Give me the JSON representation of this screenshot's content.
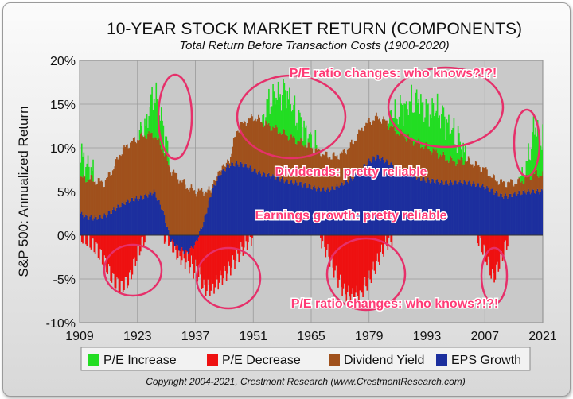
{
  "chart_data": {
    "type": "bar",
    "title": "10-YEAR STOCK MARKET RETURN (COMPONENTS)",
    "subtitle": "Total Return Before Transaction Costs (1900-2020)",
    "ylabel": "S&P 500: Annualized Return",
    "xlabel": "",
    "ylim": [
      -10,
      20
    ],
    "xlim": [
      1909,
      2021
    ],
    "x_ticks": [
      "1909",
      "1923",
      "1937",
      "1951",
      "1965",
      "1979",
      "1993",
      "2007",
      "2021"
    ],
    "y_ticks": [
      {
        "value": 20,
        "label": "20%"
      },
      {
        "value": 15,
        "label": "15%"
      },
      {
        "value": 10,
        "label": "10%"
      },
      {
        "value": 5,
        "label": "5%"
      },
      {
        "value": 0,
        "label": "0%"
      },
      {
        "value": -5,
        "label": "-5%"
      },
      {
        "value": -10,
        "label": "-10%"
      }
    ],
    "grid": true,
    "legend_placement": "bottom",
    "series": [
      {
        "name": "P/E Increase",
        "color": "#22dd22",
        "kind": "stacked-positive"
      },
      {
        "name": "P/E Decrease",
        "color": "#ee1111",
        "kind": "negative"
      },
      {
        "name": "Dividend Yield",
        "color": "#a0511c",
        "kind": "stacked-positive"
      },
      {
        "name": "EPS Growth",
        "color": "#1c2f9e",
        "kind": "signed"
      }
    ],
    "anchors": {
      "year": [
        1909,
        1911,
        1913,
        1915,
        1917,
        1919,
        1921,
        1923,
        1925,
        1927,
        1929,
        1931,
        1933,
        1935,
        1937,
        1939,
        1941,
        1943,
        1945,
        1947,
        1949,
        1951,
        1953,
        1955,
        1957,
        1959,
        1961,
        1963,
        1965,
        1967,
        1969,
        1971,
        1973,
        1975,
        1977,
        1979,
        1981,
        1983,
        1985,
        1987,
        1989,
        1991,
        1993,
        1995,
        1997,
        1999,
        2001,
        2003,
        2005,
        2007,
        2009,
        2011,
        2013,
        2015,
        2017,
        2019,
        2021
      ],
      "eps": [
        2.5,
        2.0,
        2.0,
        2.2,
        2.8,
        3.5,
        4.0,
        4.2,
        4.5,
        5.0,
        3.0,
        -0.5,
        -1.5,
        -2.0,
        -1.0,
        1.5,
        5.0,
        7.0,
        8.0,
        8.2,
        8.0,
        7.5,
        7.0,
        6.8,
        6.5,
        6.2,
        6.0,
        5.8,
        5.5,
        5.3,
        5.2,
        5.5,
        6.0,
        6.5,
        7.5,
        8.5,
        9.0,
        8.5,
        8.0,
        7.5,
        7.0,
        6.5,
        6.3,
        6.2,
        6.0,
        6.0,
        6.0,
        6.0,
        5.8,
        5.5,
        5.0,
        4.5,
        4.5,
        4.8,
        5.0,
        5.0,
        5.0
      ],
      "total": [
        6.5,
        6.5,
        6.2,
        6.0,
        7.5,
        9.5,
        10.5,
        11.0,
        11.5,
        11.5,
        10.0,
        7.5,
        6.5,
        5.5,
        5.0,
        5.0,
        5.0,
        5.0,
        8.0,
        12.0,
        13.0,
        13.5,
        13.0,
        12.5,
        12.0,
        11.5,
        11.0,
        10.5,
        10.0,
        9.5,
        9.0,
        9.0,
        9.5,
        10.5,
        12.0,
        13.0,
        13.5,
        13.0,
        12.0,
        11.5,
        11.0,
        10.5,
        10.0,
        9.5,
        9.0,
        8.5,
        8.5,
        8.5,
        8.0,
        7.5,
        6.5,
        6.0,
        6.0,
        6.0,
        6.5,
        7.0,
        7.0
      ],
      "pe_up": [
        2.5,
        1.5,
        0,
        0,
        0,
        0,
        0,
        0,
        1.0,
        5.0,
        3.0,
        0,
        0,
        0,
        0,
        0,
        0,
        0,
        0,
        0,
        0,
        0,
        0,
        3.0,
        4.0,
        5.0,
        3.0,
        2.0,
        0.5,
        0,
        0,
        0,
        0,
        0,
        0,
        0,
        0,
        0,
        1.5,
        3.0,
        4.0,
        5.0,
        4.0,
        5.0,
        4.5,
        3.5,
        2.0,
        0,
        0,
        0,
        0,
        0,
        0,
        0,
        1.0,
        5.5,
        4.0
      ],
      "pe_down": [
        0,
        -0.5,
        -1.5,
        -3.0,
        -5.0,
        -6.0,
        -5.0,
        -2.0,
        0,
        0,
        0,
        -0.5,
        -1.0,
        -1.0,
        -3.0,
        -6.0,
        -6.0,
        -5.0,
        -4.0,
        -2.5,
        -1.0,
        0,
        0,
        0,
        0,
        0,
        0,
        0,
        0,
        0,
        -2.0,
        -4.5,
        -6.5,
        -7.0,
        -6.5,
        -5.0,
        -3.0,
        -1.0,
        0,
        0,
        0,
        0,
        0,
        0,
        0,
        0,
        0,
        0,
        0,
        -2.0,
        -5.0,
        -2.5,
        0,
        0,
        0,
        0,
        0
      ]
    },
    "annotations": [
      "P/E ratio changes: who knows?!?!",
      "Dividends: pretty reliable",
      "Earnings growth: pretty reliable",
      "P/E ratio changes: who knows?!?!"
    ],
    "legend": [
      {
        "label": "P/E Increase",
        "color": "#22dd22"
      },
      {
        "label": "P/E Decrease",
        "color": "#ee1111"
      },
      {
        "label": "Dividend Yield",
        "color": "#a0511c"
      },
      {
        "label": "EPS Growth",
        "color": "#1c2f9e"
      }
    ],
    "copyright": "Copyright 2004-2021, Crestmont Research (www.CrestmontResearch.com)"
  },
  "colors": {
    "annotation_text": "#ff3b76",
    "ellipse_stroke": "#e6306a",
    "title_text": "#111111",
    "grid": "#9a9a9a"
  }
}
